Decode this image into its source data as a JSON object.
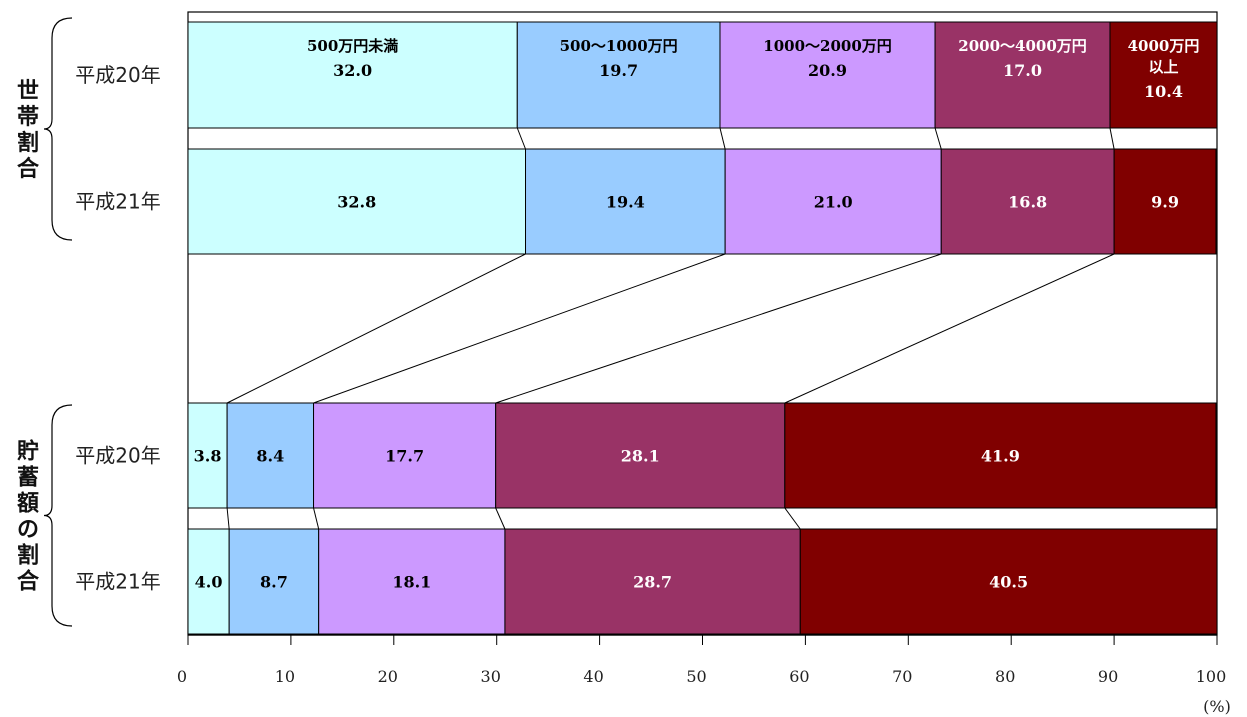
{
  "chart_data": {
    "type": "bar",
    "orientation": "horizontal",
    "stacked": true,
    "percent_stacked": true,
    "xlim": [
      0,
      100
    ],
    "x_ticks": [
      "0",
      "10",
      "20",
      "30",
      "40",
      "50",
      "60",
      "70",
      "80",
      "90",
      "100"
    ],
    "unit": "(%)",
    "series": [
      {
        "name": "500万円未満",
        "label_lines": [
          "500万円未満"
        ],
        "color": "#CCFFFF",
        "text_color": "#000000"
      },
      {
        "name": "500～1000万円",
        "label_lines": [
          "500～1000万円"
        ],
        "color": "#99CCFF",
        "text_color": "#000000"
      },
      {
        "name": "1000～2000万円",
        "label_lines": [
          "1000～2000万円"
        ],
        "color": "#CC99FF",
        "text_color": "#000000"
      },
      {
        "name": "2000～4000万円",
        "label_lines": [
          "2000～4000万円"
        ],
        "color": "#993366",
        "text_color": "#FFFFFF"
      },
      {
        "name": "4000万円以上",
        "label_lines": [
          "4000万円",
          "以上"
        ],
        "color": "#800000",
        "text_color": "#FFFFFF"
      }
    ],
    "groups": [
      {
        "label": "世帯割合",
        "rows": [
          {
            "label": "平成20年",
            "values": [
              32.0,
              19.7,
              20.9,
              17.0,
              10.4
            ],
            "value_labels": [
              "32.0",
              "19.7",
              "20.9",
              "17.0",
              "10.4"
            ]
          },
          {
            "label": "平成21年",
            "values": [
              32.8,
              19.4,
              21.0,
              16.8,
              9.9
            ],
            "value_labels": [
              "32.8",
              "19.4",
              "21.0",
              "16.8",
              "9.9"
            ]
          }
        ]
      },
      {
        "label": "貯蓄額の割合",
        "rows": [
          {
            "label": "平成20年",
            "values": [
              3.8,
              8.4,
              17.7,
              28.1,
              41.9
            ],
            "value_labels": [
              "3.8",
              "8.4",
              "17.7",
              "28.1",
              "41.9"
            ]
          },
          {
            "label": "平成21年",
            "values": [
              4.0,
              8.7,
              18.1,
              28.7,
              40.5
            ],
            "value_labels": [
              "4.0",
              "8.7",
              "18.1",
              "28.7",
              "40.5"
            ]
          }
        ]
      }
    ]
  }
}
